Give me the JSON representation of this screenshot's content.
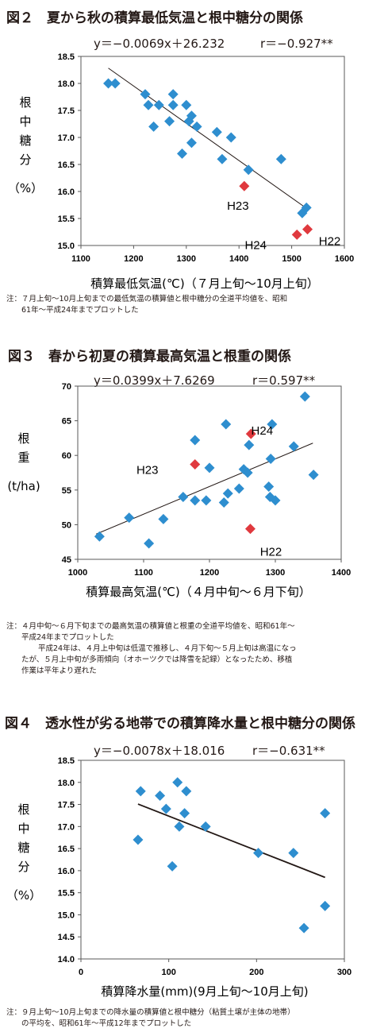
{
  "figures": [
    {
      "title": "図２　夏から秋の積算最低気温と根中糖分の関係",
      "equation": "y＝−0.0069x＋26.232",
      "r_text": "r＝−0.927**",
      "note_lines": [
        "注：７月上旬〜10月上旬までの最低気温の積算値と根中糖分の全道平均値を、昭和",
        "　　61年〜平成24年までプロットした"
      ]
    },
    {
      "title": "図３　春から初夏の積算最高気温と根重の関係",
      "equation": "y＝0.0399x＋7.6269",
      "r_text": "r＝0.597**",
      "note_lines": [
        "注：４月中旬〜６月下旬までの最高気温の積算値と根重の全道平均値を、昭和61年〜",
        "　　平成24年までプロットした",
        "平成24年は、４月上中旬は低温で推移し、４月下旬〜５月上旬は高温になっ",
        "　　たが、５月上中旬が多雨傾向（オホーツクでは降雪を記録）となったため、移植",
        "　　作業は平年より遅れた"
      ]
    },
    {
      "title": "図４　透水性が劣る地帯での積算降水量と根中糖分の関係",
      "equation": "y＝−0.0078x＋18.016",
      "r_text": "r＝−0.631**",
      "note_lines": [
        "注：９月上旬〜10月上旬までの降水量の積算値と根中糖分（粘質土壌が主体の地帯）",
        "　　の平均を、昭和61年〜平成12年までプロットした"
      ]
    }
  ],
  "chart_data": [
    {
      "type": "scatter",
      "xlabel": "積算最低気温(℃)（７月上旬〜10月上旬）",
      "ylabel": "根中糖分（%）",
      "ylabel_chars": [
        "根",
        "中",
        "糖",
        "分"
      ],
      "ylabel_unit": "（%）",
      "xlim": [
        1100,
        1600
      ],
      "ylim": [
        15.0,
        18.5
      ],
      "xticks": [
        1100,
        1200,
        1300,
        1400,
        1500,
        1600
      ],
      "yticks": [
        15.0,
        15.5,
        16.0,
        16.5,
        17.0,
        17.5,
        18.0,
        18.5
      ],
      "ytick_decimals": 1,
      "blue_color": "#2e8ecf",
      "red_color": "#e0393e",
      "points": [
        [
          1152,
          18.0
        ],
        [
          1165,
          18.0
        ],
        [
          1222,
          17.8
        ],
        [
          1228,
          17.6
        ],
        [
          1248,
          17.6
        ],
        [
          1238,
          17.2
        ],
        [
          1268,
          17.3
        ],
        [
          1275,
          17.8
        ],
        [
          1275,
          17.6
        ],
        [
          1300,
          17.6
        ],
        [
          1310,
          17.4
        ],
        [
          1305,
          17.3
        ],
        [
          1320,
          17.2
        ],
        [
          1310,
          16.9
        ],
        [
          1292,
          16.7
        ],
        [
          1358,
          17.1
        ],
        [
          1385,
          17.0
        ],
        [
          1368,
          16.6
        ],
        [
          1418,
          16.4
        ],
        [
          1480,
          16.6
        ],
        [
          1520,
          15.6
        ],
        [
          1528,
          15.7
        ]
      ],
      "highlight_points": [
        {
          "x": 1410,
          "y": 16.1,
          "label": "H23"
        },
        {
          "x": 1510,
          "y": 15.2,
          "label": "H24"
        },
        {
          "x": 1530,
          "y": 15.3,
          "label": "H22"
        }
      ],
      "trendline": {
        "slope": -0.0069,
        "intercept": 26.232,
        "x_range": [
          1152,
          1532
        ]
      }
    },
    {
      "type": "scatter",
      "xlabel": "積算最高気温(℃)（４月中旬〜６月下旬）",
      "ylabel": "根重（t/ha）",
      "ylabel_chars": [
        "根",
        "重"
      ],
      "ylabel_unit": "(t/ha)",
      "xlim": [
        1000,
        1400
      ],
      "ylim": [
        45,
        70
      ],
      "xticks": [
        1000,
        1100,
        1200,
        1300,
        1400
      ],
      "yticks": [
        45,
        50,
        55,
        60,
        65,
        70
      ],
      "ytick_decimals": 0,
      "blue_color": "#2e8ecf",
      "red_color": "#e0393e",
      "points": [
        [
          1033,
          48.3
        ],
        [
          1078,
          51.0
        ],
        [
          1108,
          47.3
        ],
        [
          1130,
          50.8
        ],
        [
          1160,
          54.0
        ],
        [
          1178,
          53.5
        ],
        [
          1178,
          62.2
        ],
        [
          1195,
          53.5
        ],
        [
          1200,
          58.2
        ],
        [
          1222,
          53.2
        ],
        [
          1225,
          64.5
        ],
        [
          1228,
          54.5
        ],
        [
          1245,
          55.2
        ],
        [
          1252,
          58.0
        ],
        [
          1258,
          57.5
        ],
        [
          1260,
          61.5
        ],
        [
          1290,
          55.5
        ],
        [
          1293,
          59.5
        ],
        [
          1292,
          54.0
        ],
        [
          1295,
          64.5
        ],
        [
          1300,
          53.5
        ],
        [
          1328,
          61.3
        ],
        [
          1345,
          68.5
        ],
        [
          1358,
          57.2
        ]
      ],
      "highlight_points": [
        {
          "x": 1178,
          "y": 58.7,
          "label": "H23"
        },
        {
          "x": 1263,
          "y": 63.1,
          "label": "H24"
        },
        {
          "x": 1262,
          "y": 49.4,
          "label": "H22"
        }
      ],
      "trendline": {
        "slope": 0.0399,
        "intercept": 7.6269,
        "x_range": [
          1028,
          1357
        ]
      }
    },
    {
      "type": "scatter",
      "xlabel": "積算降水量(mm)(9月上旬〜10月上旬)",
      "ylabel": "根中糖分（%）",
      "ylabel_chars": [
        "根",
        "中",
        "糖",
        "分"
      ],
      "ylabel_unit": "（%）",
      "xlim": [
        0,
        300
      ],
      "ylim": [
        14.0,
        18.5
      ],
      "xticks": [
        0,
        100,
        200,
        300
      ],
      "yticks": [
        14.0,
        14.5,
        15.0,
        15.5,
        16.0,
        16.5,
        17.0,
        17.5,
        18.0,
        18.5
      ],
      "ytick_decimals": 1,
      "blue_color": "#2e8ecf",
      "red_color": "#e0393e",
      "points": [
        [
          65,
          16.7
        ],
        [
          68,
          17.8
        ],
        [
          90,
          17.7
        ],
        [
          97,
          17.4
        ],
        [
          104,
          16.1
        ],
        [
          110,
          18.0
        ],
        [
          112,
          17.0
        ],
        [
          118,
          17.3
        ],
        [
          120,
          17.8
        ],
        [
          142,
          17.0
        ],
        [
          202,
          16.4
        ],
        [
          242,
          16.4
        ],
        [
          254,
          14.7
        ],
        [
          278,
          17.3
        ],
        [
          278,
          15.2
        ]
      ],
      "highlight_points": [],
      "trendline": {
        "slope": -0.0078,
        "intercept": 18.016,
        "x_range": [
          65,
          278
        ]
      }
    }
  ]
}
